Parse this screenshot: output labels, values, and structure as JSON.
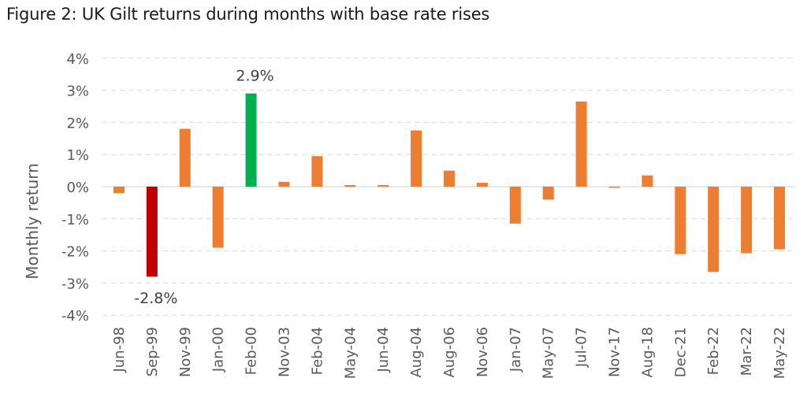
{
  "title": "Figure 2: UK Gilt returns during months with base rate rises",
  "chart_data": {
    "type": "bar",
    "title": "Figure 2: UK Gilt returns during months with base rate rises",
    "xlabel": "",
    "ylabel": "Monthly return",
    "ylim": [
      -4,
      4
    ],
    "yticks": [
      -4,
      -3,
      -2,
      -1,
      0,
      1,
      2,
      3,
      4
    ],
    "ytick_labels": [
      "-4%",
      "-3%",
      "-2%",
      "-1%",
      "0%",
      "1%",
      "2%",
      "3%",
      "4%"
    ],
    "grid": "horizontal-dashed",
    "categories": [
      "Jun-98",
      "Sep-99",
      "Nov-99",
      "Jan-00",
      "Feb-00",
      "Nov-03",
      "Feb-04",
      "May-04",
      "Jun-04",
      "Aug-04",
      "Aug-06",
      "Nov-06",
      "Jan-07",
      "May-07",
      "Jul-07",
      "Nov-17",
      "Aug-18",
      "Dec-21",
      "Feb-22",
      "Mar-22",
      "May-22"
    ],
    "values": [
      -0.2,
      -2.8,
      1.8,
      -1.9,
      2.9,
      0.15,
      0.95,
      0.05,
      0.05,
      1.75,
      0.5,
      0.12,
      -1.15,
      -0.4,
      2.65,
      -0.02,
      0.35,
      -2.1,
      -2.65,
      -2.07,
      -1.95
    ],
    "colors": [
      "#ed7d31",
      "#c00000",
      "#ed7d31",
      "#ed7d31",
      "#00b050",
      "#ed7d31",
      "#ed7d31",
      "#ed7d31",
      "#ed7d31",
      "#ed7d31",
      "#ed7d31",
      "#ed7d31",
      "#ed7d31",
      "#ed7d31",
      "#ed7d31",
      "#ed7d31",
      "#ed7d31",
      "#ed7d31",
      "#ed7d31",
      "#ed7d31",
      "#ed7d31"
    ],
    "annotations": [
      {
        "category": "Feb-00",
        "text": "2.9%",
        "position": "above"
      },
      {
        "category": "Sep-99",
        "text": "-2.8%",
        "position": "below"
      }
    ]
  }
}
